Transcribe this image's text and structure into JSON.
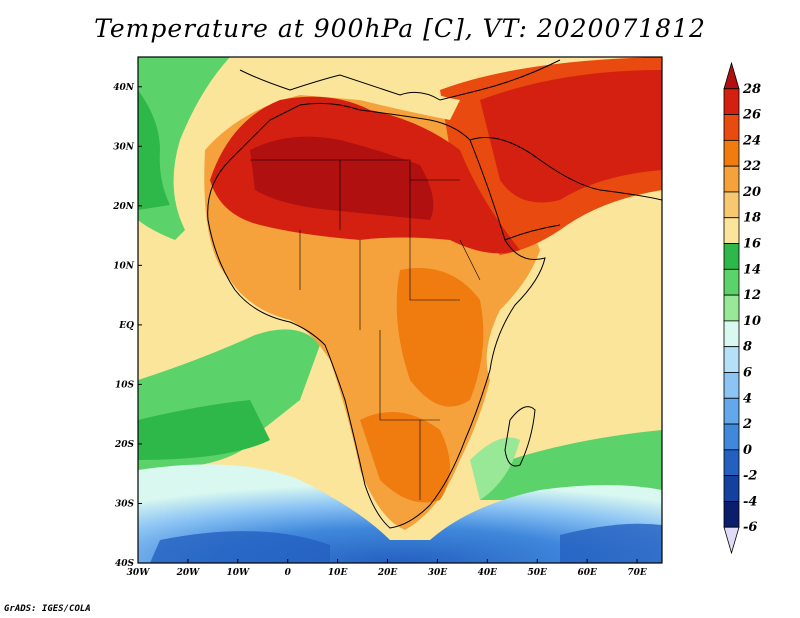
{
  "title": "Temperature at 900hPa [C], VT: 2020071812",
  "footer": "GrADS: IGES/COLA",
  "map": {
    "lon_labels": [
      "30W",
      "20W",
      "10W",
      "0",
      "10E",
      "20E",
      "30E",
      "40E",
      "50E",
      "60E",
      "70E"
    ],
    "lat_labels": [
      "40N",
      "30N",
      "20N",
      "10N",
      "EQ",
      "10S",
      "20S",
      "30S",
      "40S"
    ]
  },
  "colorbar": {
    "labels": [
      "28",
      "26",
      "24",
      "22",
      "20",
      "18",
      "16",
      "14",
      "12",
      "10",
      "8",
      "6",
      "4",
      "2",
      "0",
      "-2",
      "-4",
      "-6"
    ],
    "colors": [
      "#b01010",
      "#d42010",
      "#e84a10",
      "#f07c10",
      "#f5a23c",
      "#f8c870",
      "#fbe59a",
      "#2fb84a",
      "#5cd26a",
      "#98e898",
      "#d8f8f0",
      "#b4e0f8",
      "#8cc4f4",
      "#64a8ec",
      "#4088dc",
      "#2460c0",
      "#1440a0",
      "#0a1e6c",
      "#e0dcf8"
    ]
  }
}
